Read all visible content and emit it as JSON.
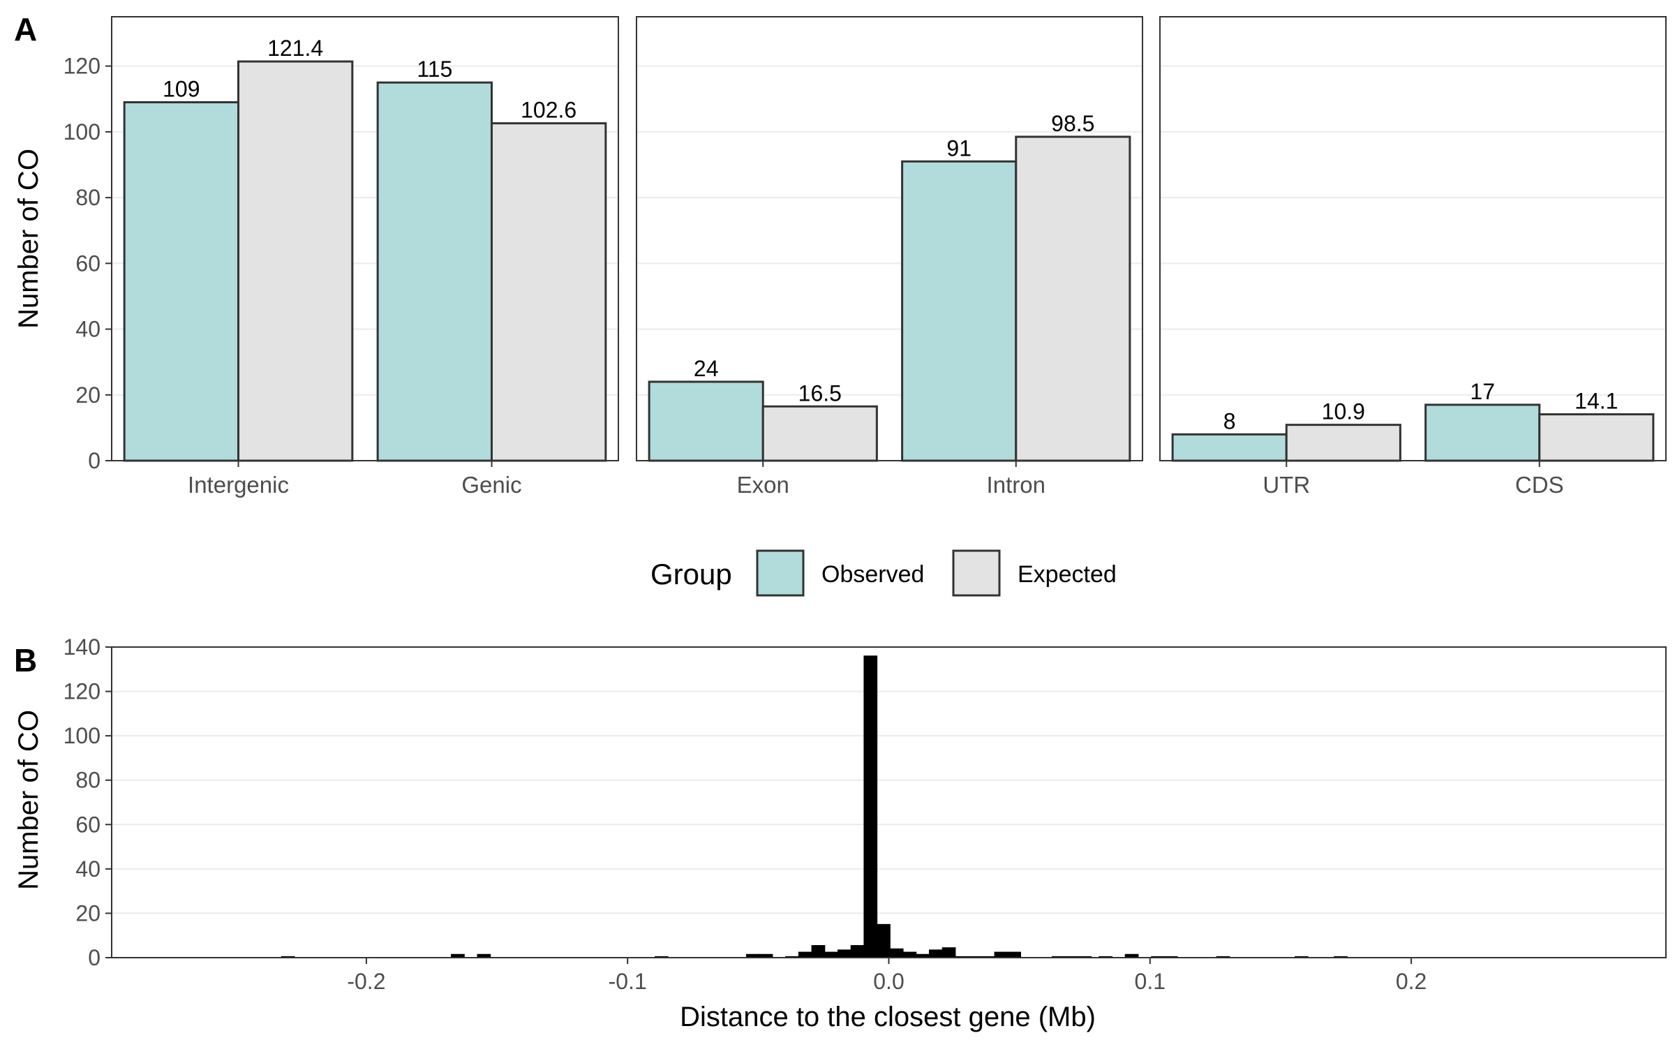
{
  "panel_a": {
    "letter": "A",
    "ylabel": "Number of CO"
  },
  "panel_b": {
    "letter": "B",
    "ylabel": "Number of CO",
    "xlabel": "Distance to the closest gene (Mb)"
  },
  "legend": {
    "title": "Group",
    "items": [
      {
        "label": "Observed",
        "color": "#b2dbdb"
      },
      {
        "label": "Expected",
        "color": "#e3e3e3"
      }
    ]
  },
  "colors": {
    "observed": "#b2dbdb",
    "expected": "#e3e3e3",
    "bar_outline": "#333333",
    "histogram": "#000000",
    "grid": "#ebebeb"
  },
  "chart_data": [
    {
      "type": "bar",
      "facets": [
        {
          "categories": [
            "Intergenic",
            "Genic"
          ]
        },
        {
          "categories": [
            "Exon",
            "Intron"
          ]
        },
        {
          "categories": [
            "UTR",
            "CDS"
          ]
        }
      ],
      "series": [
        {
          "name": "Observed",
          "values": [
            109,
            115,
            24,
            91,
            8,
            17
          ],
          "labels": [
            "109",
            "115",
            "24",
            "91",
            "8",
            "17"
          ]
        },
        {
          "name": "Expected",
          "values": [
            121.4,
            102.6,
            16.5,
            98.5,
            10.9,
            14.1
          ],
          "labels": [
            "121.4",
            "102.6",
            "16.5",
            "98.5",
            "10.9",
            "14.1"
          ]
        }
      ],
      "ylabel": "Number of CO",
      "ylim": [
        0,
        135
      ],
      "yticks": [
        "0",
        "20",
        "40",
        "60",
        "80",
        "100",
        "120"
      ],
      "legend_position": "bottom",
      "grid": "horizontal"
    },
    {
      "type": "bar",
      "subtype": "histogram",
      "x": [
        -0.23,
        -0.165,
        -0.155,
        -0.087,
        -0.052,
        -0.047,
        -0.037,
        -0.032,
        -0.027,
        -0.022,
        -0.017,
        -0.012,
        -0.007,
        -0.002,
        0.003,
        0.008,
        0.013,
        0.018,
        0.023,
        0.028,
        0.033,
        0.038,
        0.043,
        0.048,
        0.065,
        0.07,
        0.075,
        0.083,
        0.093,
        0.103,
        0.108,
        0.128,
        0.158,
        0.173
      ],
      "values": [
        0.5,
        1.5,
        1.5,
        0.5,
        1.5,
        1.5,
        0.5,
        2.5,
        5.5,
        2.5,
        3.5,
        5.5,
        136,
        15,
        4,
        2.5,
        1.5,
        3.5,
        4.5,
        0.5,
        0.5,
        0.5,
        2.5,
        2.5,
        0.5,
        0.5,
        0.5,
        0.5,
        1.5,
        0.5,
        0.5,
        0.5,
        0.5,
        0.5
      ],
      "bin_width": 0.005,
      "xlabel": "Distance to the closest gene (Mb)",
      "ylabel": "Number of CO",
      "xlim": [
        -0.2975,
        0.2975
      ],
      "ylim": [
        0,
        140
      ],
      "xticks": [
        {
          "value": -0.2,
          "label": "-0.2"
        },
        {
          "value": -0.1,
          "label": "-0.1"
        },
        {
          "value": 0.0,
          "label": "0.0"
        },
        {
          "value": 0.1,
          "label": "0.1"
        },
        {
          "value": 0.2,
          "label": "0.2"
        }
      ],
      "yticks": [
        "0",
        "20",
        "40",
        "60",
        "80",
        "100",
        "120",
        "140"
      ],
      "grid": "horizontal"
    }
  ]
}
